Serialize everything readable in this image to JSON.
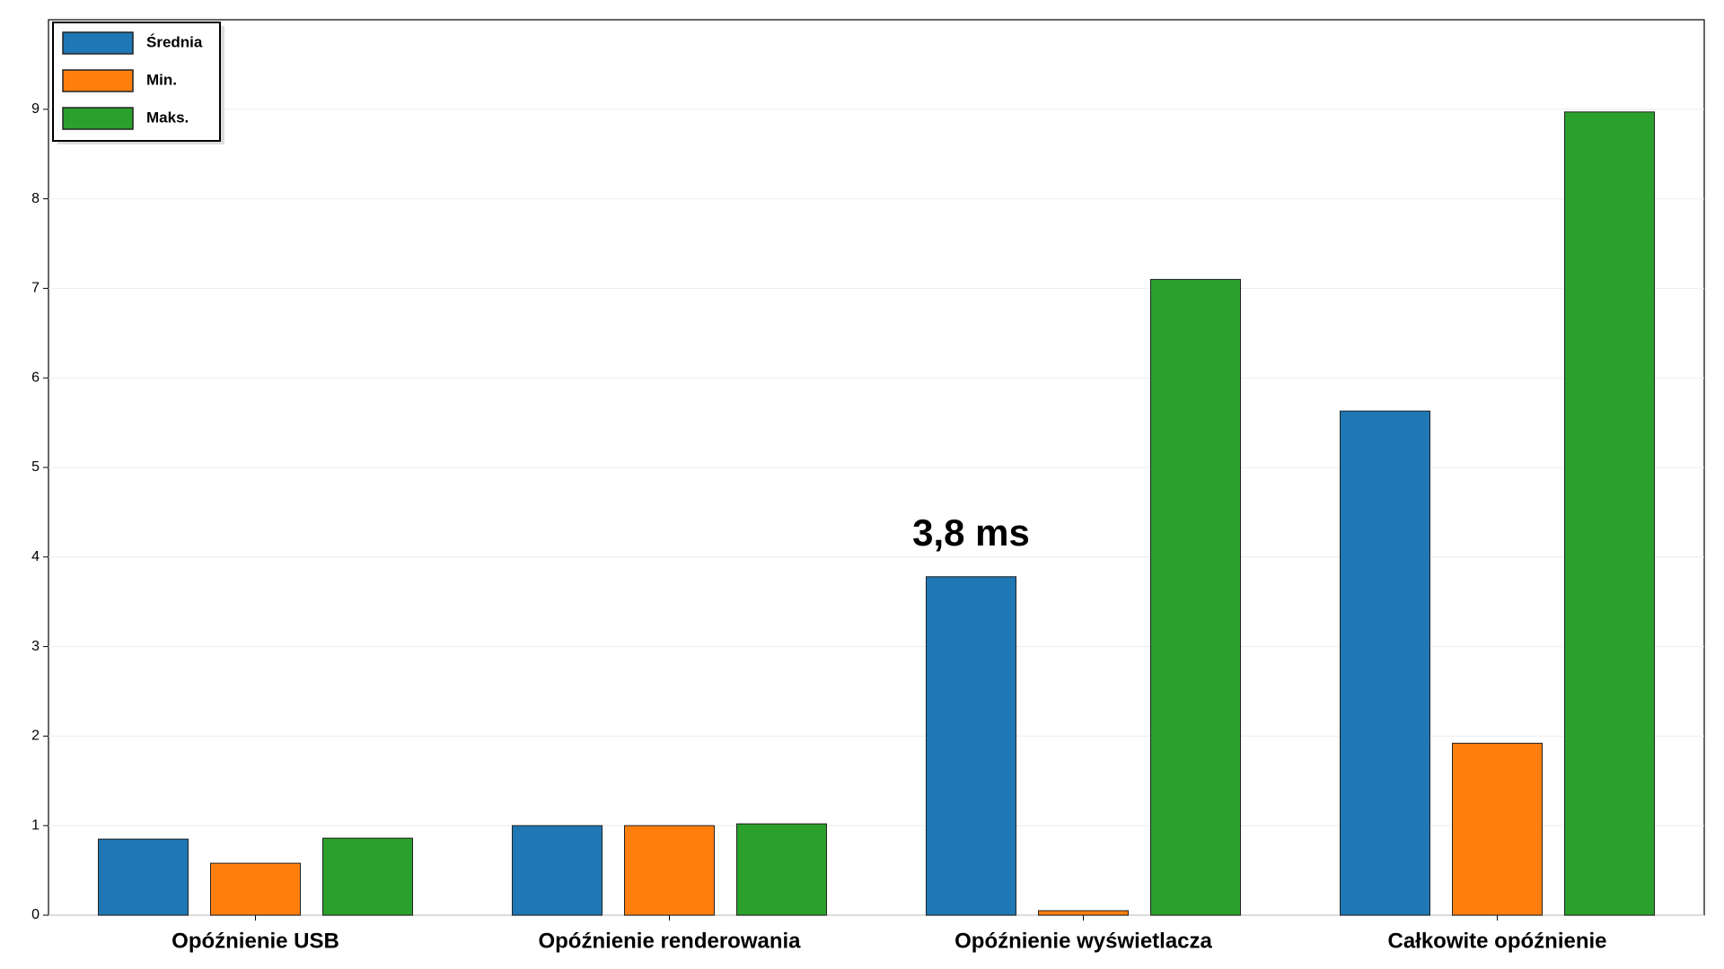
{
  "chart_data": {
    "type": "bar",
    "categories": [
      "Opóźnienie USB",
      "Opóźnienie renderowania",
      "Opóźnienie wyświetlacza",
      "Całkowite opóźnienie"
    ],
    "series": [
      {
        "name": "Średnia",
        "color": "#1f77b4",
        "values": [
          0.85,
          1.0,
          3.78,
          5.63
        ]
      },
      {
        "name": "Min.",
        "color": "#ff7f0e",
        "values": [
          0.58,
          1.0,
          0.05,
          1.92
        ]
      },
      {
        "name": "Maks.",
        "color": "#2ca02c",
        "values": [
          0.86,
          1.02,
          7.1,
          8.97
        ]
      }
    ],
    "ylim": [
      0,
      10
    ],
    "yticks": [
      0,
      1,
      2,
      3,
      4,
      5,
      6,
      7,
      8,
      9
    ],
    "grid": true,
    "legend": "upper-left",
    "annotation": "3,8 ms"
  }
}
